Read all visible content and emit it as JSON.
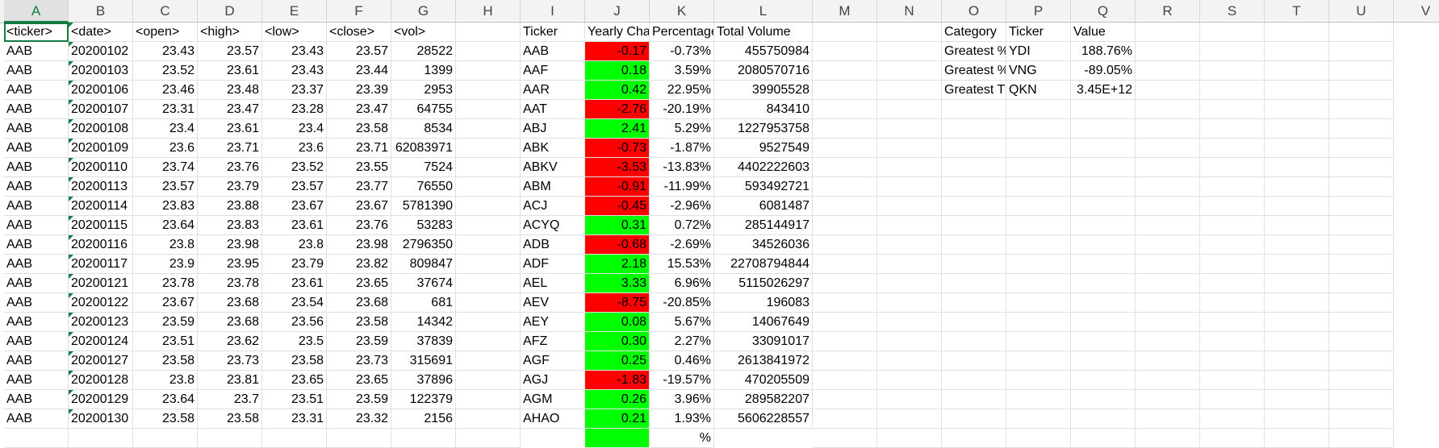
{
  "columns": [
    "A",
    "B",
    "C",
    "D",
    "E",
    "F",
    "G",
    "H",
    "I",
    "J",
    "K",
    "L",
    "M",
    "N",
    "O",
    "P",
    "Q",
    "R",
    "S",
    "T",
    "U",
    "V"
  ],
  "selected_column": "A",
  "active_cell": "A1",
  "colors": {
    "negative_fill": "#ff0000",
    "positive_fill": "#00ff00",
    "accent": "#107c41"
  },
  "stock_headers": [
    "<ticker>",
    "<date>",
    "<open>",
    "<high>",
    "<low>",
    "<close>",
    "<vol>"
  ],
  "stock_rows": [
    [
      "AAB",
      "20200102",
      "23.43",
      "23.57",
      "23.43",
      "23.57",
      "28522"
    ],
    [
      "AAB",
      "20200103",
      "23.52",
      "23.61",
      "23.43",
      "23.44",
      "1399"
    ],
    [
      "AAB",
      "20200106",
      "23.46",
      "23.48",
      "23.37",
      "23.39",
      "2953"
    ],
    [
      "AAB",
      "20200107",
      "23.31",
      "23.47",
      "23.28",
      "23.47",
      "64755"
    ],
    [
      "AAB",
      "20200108",
      "23.4",
      "23.61",
      "23.4",
      "23.58",
      "8534"
    ],
    [
      "AAB",
      "20200109",
      "23.6",
      "23.71",
      "23.6",
      "23.71",
      "62083971"
    ],
    [
      "AAB",
      "20200110",
      "23.74",
      "23.76",
      "23.52",
      "23.55",
      "7524"
    ],
    [
      "AAB",
      "20200113",
      "23.57",
      "23.79",
      "23.57",
      "23.77",
      "76550"
    ],
    [
      "AAB",
      "20200114",
      "23.83",
      "23.88",
      "23.67",
      "23.67",
      "5781390"
    ],
    [
      "AAB",
      "20200115",
      "23.64",
      "23.83",
      "23.61",
      "23.76",
      "53283"
    ],
    [
      "AAB",
      "20200116",
      "23.8",
      "23.98",
      "23.8",
      "23.98",
      "2796350"
    ],
    [
      "AAB",
      "20200117",
      "23.9",
      "23.95",
      "23.79",
      "23.82",
      "809847"
    ],
    [
      "AAB",
      "20200121",
      "23.78",
      "23.78",
      "23.61",
      "23.65",
      "37674"
    ],
    [
      "AAB",
      "20200122",
      "23.67",
      "23.68",
      "23.54",
      "23.68",
      "681"
    ],
    [
      "AAB",
      "20200123",
      "23.59",
      "23.68",
      "23.56",
      "23.58",
      "14342"
    ],
    [
      "AAB",
      "20200124",
      "23.51",
      "23.62",
      "23.5",
      "23.59",
      "37839"
    ],
    [
      "AAB",
      "20200127",
      "23.58",
      "23.73",
      "23.58",
      "23.73",
      "315691"
    ],
    [
      "AAB",
      "20200128",
      "23.8",
      "23.81",
      "23.65",
      "23.65",
      "37896"
    ],
    [
      "AAB",
      "20200129",
      "23.64",
      "23.7",
      "23.51",
      "23.59",
      "122379"
    ],
    [
      "AAB",
      "20200130",
      "23.58",
      "23.58",
      "23.31",
      "23.32",
      "2156"
    ]
  ],
  "summary_headers": [
    "Ticker",
    "Yearly Cha",
    "Percentage",
    "Total Volume"
  ],
  "summary_rows": [
    {
      "ticker": "AAB",
      "yearly_change": "-0.17",
      "percent": "-0.73%",
      "volume": "455750984",
      "positive": false
    },
    {
      "ticker": "AAF",
      "yearly_change": "0.18",
      "percent": "3.59%",
      "volume": "2080570716",
      "positive": true
    },
    {
      "ticker": "AAR",
      "yearly_change": "0.42",
      "percent": "22.95%",
      "volume": "39905528",
      "positive": true
    },
    {
      "ticker": "AAT",
      "yearly_change": "-2.76",
      "percent": "-20.19%",
      "volume": "843410",
      "positive": false
    },
    {
      "ticker": "ABJ",
      "yearly_change": "2.41",
      "percent": "5.29%",
      "volume": "1227953758",
      "positive": true
    },
    {
      "ticker": "ABK",
      "yearly_change": "-0.73",
      "percent": "-1.87%",
      "volume": "9527549",
      "positive": false
    },
    {
      "ticker": "ABKV",
      "yearly_change": "-3.53",
      "percent": "-13.83%",
      "volume": "4402222603",
      "positive": false
    },
    {
      "ticker": "ABM",
      "yearly_change": "-0.91",
      "percent": "-11.99%",
      "volume": "593492721",
      "positive": false
    },
    {
      "ticker": "ACJ",
      "yearly_change": "-0.45",
      "percent": "-2.96%",
      "volume": "6081487",
      "positive": false
    },
    {
      "ticker": "ACYQ",
      "yearly_change": "0.31",
      "percent": "0.72%",
      "volume": "285144917",
      "positive": true
    },
    {
      "ticker": "ADB",
      "yearly_change": "-0.68",
      "percent": "-2.69%",
      "volume": "34526036",
      "positive": false
    },
    {
      "ticker": "ADF",
      "yearly_change": "2.18",
      "percent": "15.53%",
      "volume": "22708794844",
      "positive": true
    },
    {
      "ticker": "AEL",
      "yearly_change": "3.33",
      "percent": "6.96%",
      "volume": "5115026297",
      "positive": true
    },
    {
      "ticker": "AEV",
      "yearly_change": "-8.75",
      "percent": "-20.85%",
      "volume": "196083",
      "positive": false
    },
    {
      "ticker": "AEY",
      "yearly_change": "0.08",
      "percent": "5.67%",
      "volume": "14067649",
      "positive": true
    },
    {
      "ticker": "AFZ",
      "yearly_change": "0.30",
      "percent": "2.27%",
      "volume": "33091017",
      "positive": true
    },
    {
      "ticker": "AGF",
      "yearly_change": "0.25",
      "percent": "0.46%",
      "volume": "2613841972",
      "positive": true
    },
    {
      "ticker": "AGJ",
      "yearly_change": "-1.83",
      "percent": "-19.57%",
      "volume": "470205509",
      "positive": false
    },
    {
      "ticker": "AGM",
      "yearly_change": "0.26",
      "percent": "3.96%",
      "volume": "289582207",
      "positive": true
    },
    {
      "ticker": "AHAO",
      "yearly_change": "0.21",
      "percent": "1.93%",
      "volume": "5606228557",
      "positive": true
    }
  ],
  "greatest_headers": [
    "Category",
    "Ticker",
    "Value"
  ],
  "greatest_rows": [
    [
      "Greatest %",
      "YDI",
      "188.76%"
    ],
    [
      "Greatest %",
      "VNG",
      "-89.05%"
    ],
    [
      "Greatest T",
      "QKN",
      "3.45E+12"
    ]
  ],
  "partial_row_percent": "%"
}
